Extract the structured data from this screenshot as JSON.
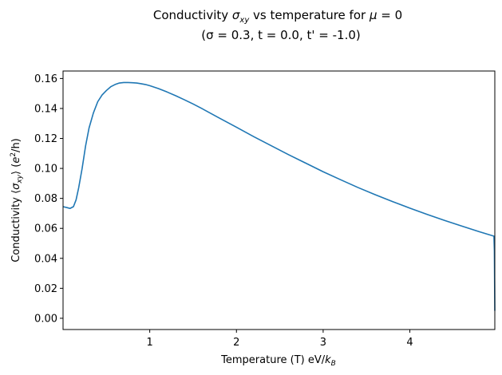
{
  "chart_data": {
    "type": "line",
    "title_line1": {
      "prefix": "Conductivity ",
      "sym": "σ",
      "sub": "xy",
      "suffix": " vs temperature for ",
      "mu": "μ",
      "eq": " = 0"
    },
    "title_line2": "(σ = 0.3, t = 0.0, t' = -1.0)",
    "xlabel": {
      "prefix": "Temperature (T) eV/",
      "k": "k",
      "sub": "B"
    },
    "ylabel": {
      "prefix": "Conductivity ⟨",
      "sym": "σ",
      "sub": "xy",
      "mid": "⟩ (",
      "e": "e",
      "sup": "2",
      "end": "/h)"
    },
    "xlim": [
      0.0,
      4.98
    ],
    "ylim": [
      -0.0075,
      0.165
    ],
    "xticks": [
      1,
      2,
      3,
      4
    ],
    "xtick_labels": [
      "1",
      "2",
      "3",
      "4"
    ],
    "yticks": [
      0.0,
      0.02,
      0.04,
      0.06,
      0.08,
      0.1,
      0.12,
      0.14,
      0.16
    ],
    "ytick_labels": [
      "0.00",
      "0.02",
      "0.04",
      "0.06",
      "0.08",
      "0.10",
      "0.12",
      "0.14",
      "0.16"
    ],
    "grid": false,
    "series": [
      {
        "color": "#1f77b4",
        "x": [
          0.0,
          0.05,
          0.08,
          0.12,
          0.15,
          0.18,
          0.22,
          0.26,
          0.3,
          0.35,
          0.4,
          0.45,
          0.5,
          0.55,
          0.6,
          0.65,
          0.7,
          0.75,
          0.8,
          0.85,
          0.9,
          0.95,
          1.0,
          1.1,
          1.2,
          1.3,
          1.4,
          1.5,
          1.6,
          1.8,
          2.0,
          2.2,
          2.4,
          2.6,
          2.8,
          3.0,
          3.2,
          3.4,
          3.6,
          3.8,
          4.0,
          4.2,
          4.4,
          4.6,
          4.8,
          4.97,
          4.975,
          4.98
        ],
        "y": [
          0.0745,
          0.0738,
          0.0733,
          0.0745,
          0.079,
          0.087,
          0.1,
          0.115,
          0.127,
          0.137,
          0.1445,
          0.149,
          0.152,
          0.1545,
          0.156,
          0.157,
          0.1573,
          0.1573,
          0.1572,
          0.157,
          0.1565,
          0.156,
          0.1552,
          0.1533,
          0.151,
          0.1485,
          0.1458,
          0.143,
          0.14,
          0.1337,
          0.1275,
          0.1212,
          0.1152,
          0.1092,
          0.1035,
          0.0978,
          0.0925,
          0.0873,
          0.0825,
          0.0779,
          0.0735,
          0.0693,
          0.0653,
          0.0615,
          0.0578,
          0.0548,
          0.045,
          0.005
        ]
      }
    ]
  }
}
